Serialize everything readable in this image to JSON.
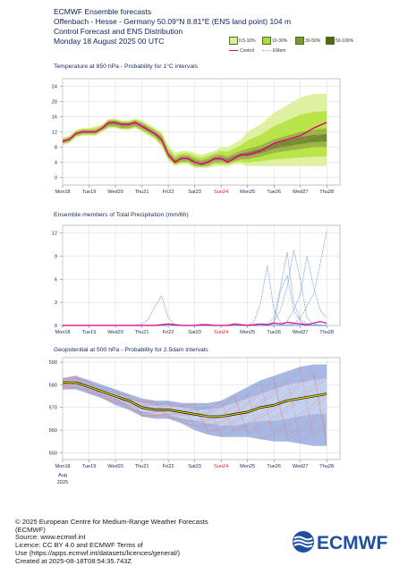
{
  "header": {
    "title": "ECMWF Ensemble forecasts",
    "location": "Offenbach - Hesse - Germany 50.09°N 8.81°E (ENS land point) 104 m",
    "subtitle": "Control Forecast and ENS Distribution",
    "date": "Monday 18 August 2025 00 UTC"
  },
  "legend": {
    "items": [
      {
        "label": "0.5-10%",
        "color": "#d9ef9a"
      },
      {
        "label": "10-30%",
        "color": "#a8e030"
      },
      {
        "label": "30-50%",
        "color": "#7a9a2a"
      },
      {
        "label": "50-100%",
        "color": "#4e6a10"
      }
    ],
    "control_label": "Control",
    "emem_label": "EMem"
  },
  "footer": {
    "line1": "© 2025 European Centre for Medium-Range Weather Forecasts",
    "line2": "(ECMWF)",
    "line3": "Source: www.ecmwf.int",
    "line4": "Licence: CC BY 4.0 and ECMWF Terms of",
    "line5": "Use (https://apps.ecmwf.int/datasets/licences/general/)",
    "line6": "Created at 2025-08-18T08:54:35.743Z",
    "logo_text": "ECMWF"
  },
  "colors": {
    "control": "#e0007a",
    "grid": "#d8d8d8",
    "sunday_label": "#e02020",
    "z500_fill": "#8aa0d8",
    "z500_mean": "#f4e600"
  },
  "chart_data": [
    {
      "type": "area",
      "title": "Temperature at 850 hPa - Probability for 1°C intervals",
      "ylim": [
        -2,
        26
      ],
      "yticks": [
        0,
        4,
        8,
        12,
        16,
        20,
        24
      ],
      "xlim": [
        0,
        10.5
      ],
      "xticks": [
        "Mon18",
        "Tue19",
        "Wed20",
        "Thu21",
        "Fri22",
        "Sat23",
        "Sun24",
        "Mon25",
        "Tue26",
        "Wed27",
        "Thu28"
      ],
      "x": [
        0,
        0.25,
        0.5,
        0.75,
        1,
        1.25,
        1.5,
        1.75,
        2,
        2.25,
        2.5,
        2.75,
        3,
        3.25,
        3.5,
        3.75,
        4,
        4.25,
        4.5,
        4.75,
        5,
        5.25,
        5.5,
        5.75,
        6,
        6.25,
        6.5,
        6.75,
        7,
        7.5,
        8,
        8.5,
        9,
        9.5,
        10
      ],
      "series": [
        {
          "name": "Control",
          "values": [
            9.5,
            10,
            11.5,
            12,
            12,
            12,
            13,
            14.5,
            14.5,
            14,
            14,
            14.5,
            13.5,
            12.5,
            11.5,
            10,
            6,
            4,
            5,
            5,
            4,
            3.5,
            4,
            5,
            5,
            4,
            5,
            6,
            6,
            7,
            9,
            10,
            11,
            13,
            14.5
          ]
        },
        {
          "name": "0.5-100% lower",
          "values": [
            8.5,
            9,
            10.5,
            11,
            11,
            11,
            12,
            13,
            13,
            12.5,
            12.5,
            13,
            12,
            11,
            10,
            8,
            4.5,
            3,
            3.5,
            3.5,
            2.5,
            2.5,
            2.5,
            3,
            3,
            3,
            3.5,
            3.5,
            3,
            3,
            3,
            3,
            3,
            3,
            3
          ]
        },
        {
          "name": "0.5-100% upper",
          "values": [
            10.5,
            11,
            12.5,
            13,
            13,
            13.5,
            14,
            15.5,
            15.5,
            15,
            15,
            15.5,
            15,
            14,
            13,
            12,
            8.5,
            6.5,
            7,
            7,
            6.5,
            6,
            6.5,
            7,
            8,
            8,
            9,
            10,
            12,
            14,
            17,
            19,
            21,
            22,
            22
          ]
        },
        {
          "name": "30-100% lower",
          "values": [
            9,
            9.5,
            11,
            11.5,
            11.5,
            11.5,
            12.5,
            13.5,
            13.5,
            13,
            13,
            13.5,
            12.7,
            11.7,
            10.7,
            9,
            5.2,
            3.6,
            4.2,
            4.2,
            3.2,
            3,
            3.2,
            4,
            4,
            3.8,
            4.3,
            4.8,
            4.8,
            5.5,
            6.5,
            7,
            7.5,
            8,
            8
          ]
        },
        {
          "name": "30-100% upper",
          "values": [
            10,
            10.5,
            12,
            12.5,
            12.5,
            12.5,
            13.5,
            15,
            15,
            14.5,
            14.5,
            15,
            14.3,
            13.3,
            12.3,
            11,
            7,
            5,
            5.8,
            5.8,
            5,
            4.5,
            5,
            5.8,
            6,
            5.5,
            6.3,
            7,
            7.5,
            8.5,
            10,
            11,
            12,
            12.5,
            13
          ]
        }
      ]
    },
    {
      "type": "line",
      "title": "Ensemble members of Total Precipitation (mm/6h)",
      "ylim": [
        0,
        13
      ],
      "yticks": [
        0,
        3,
        6,
        9,
        12
      ],
      "xlim": [
        0,
        10.5
      ],
      "xticks": [
        "Mon18",
        "Tue19",
        "Wed20",
        "Thu21",
        "Fri22",
        "Sat23",
        "Sun24",
        "Mon25",
        "Tue26",
        "Wed27",
        "Thu28"
      ],
      "series": [
        {
          "name": "Control",
          "values": [
            0,
            0,
            0,
            0,
            0,
            0,
            0,
            0,
            0,
            0,
            0,
            0,
            0,
            0,
            0,
            0.1,
            0.2,
            0.1,
            0,
            0,
            0,
            0.1,
            0.1,
            0,
            0,
            0,
            0.2,
            0.1,
            0,
            0.1,
            0.2,
            0.1,
            0.3,
            0.2,
            0.4,
            0.3,
            0.2,
            0.1,
            0.3,
            0.5,
            0.3
          ]
        },
        {
          "name": "",
          "values": [
            0,
            0,
            0,
            0,
            0,
            0,
            0,
            0,
            0,
            0,
            0,
            0,
            0.2,
            0.8,
            2.5,
            3.8,
            1,
            0.1,
            0,
            0,
            0,
            0,
            0,
            0,
            0,
            0,
            0,
            0,
            0,
            0,
            0,
            0,
            0,
            0,
            0,
            0,
            0,
            0,
            0,
            0,
            0
          ]
        },
        {
          "name": "",
          "values": [
            0,
            0,
            0,
            0,
            0,
            0,
            0,
            0,
            0,
            0,
            0,
            0,
            0,
            0,
            0,
            0,
            0,
            0,
            0,
            0,
            0,
            0,
            0,
            0,
            0,
            0,
            0,
            0,
            0,
            0.5,
            3,
            7.8,
            2,
            0.3,
            0,
            0,
            0,
            0,
            0,
            0,
            0
          ]
        },
        {
          "name": "",
          "values": [
            0,
            0,
            0,
            0,
            0,
            0,
            0,
            0,
            0,
            0,
            0,
            0,
            0,
            0,
            0,
            0,
            0,
            0,
            0,
            0,
            0,
            0,
            0,
            0,
            0,
            0,
            0,
            0,
            0,
            0,
            0,
            0.2,
            1,
            5,
            9.5,
            3,
            0.8,
            0.2,
            0,
            0,
            0
          ]
        },
        {
          "name": "",
          "values": [
            0,
            0,
            0,
            0,
            0,
            0,
            0,
            0,
            0,
            0,
            0,
            0,
            0,
            0,
            0,
            0,
            0,
            0,
            0,
            0,
            0,
            0,
            0,
            0,
            0,
            0,
            0,
            0,
            0,
            0,
            0,
            0,
            0.5,
            2,
            5,
            9.8,
            6,
            1,
            0.2,
            0,
            0
          ]
        },
        {
          "name": "",
          "values": [
            0,
            0,
            0,
            0,
            0,
            0,
            0,
            0,
            0,
            0,
            0,
            0,
            0,
            0,
            0,
            0,
            0,
            0,
            0,
            0,
            0,
            0,
            0,
            0,
            0,
            0,
            0,
            0,
            0,
            0,
            0,
            0,
            0,
            0,
            0.5,
            2,
            4,
            9,
            5,
            2,
            1
          ]
        },
        {
          "name": "",
          "values": [
            0,
            0,
            0,
            0,
            0,
            0,
            0,
            0,
            0,
            0,
            0,
            0,
            0,
            0,
            0,
            0,
            0,
            0,
            0,
            0,
            0,
            0,
            0,
            0,
            0,
            0,
            0,
            0,
            0,
            0,
            0,
            0,
            0,
            0,
            0,
            0.2,
            1,
            2.5,
            4,
            8,
            12.3
          ]
        },
        {
          "name": "",
          "values": [
            0,
            0,
            0,
            0,
            0,
            0,
            0,
            0,
            0,
            0,
            0,
            0,
            0,
            0,
            0,
            0,
            0,
            0,
            0,
            0,
            0,
            0,
            0,
            0,
            0,
            0,
            0,
            0,
            0,
            0,
            0,
            0,
            0.3,
            4.5,
            6.5,
            2,
            0.5,
            0,
            0,
            0,
            0
          ]
        }
      ]
    },
    {
      "type": "area",
      "title": "Geopotential at 500 hPa - Probability for 2.5dam intervals",
      "ylim": [
        547,
        592
      ],
      "yticks": [
        550,
        560,
        570,
        580,
        590
      ],
      "xlim": [
        0,
        10.5
      ],
      "xticks": [
        "Mon18",
        "Tue19",
        "Wed20",
        "Thu21",
        "Fri22",
        "Sat23",
        "Sun24",
        "Mon25",
        "Tue26",
        "Wed27",
        "Thu28"
      ],
      "xsublabels": [
        "Aug",
        "2025"
      ],
      "x": [
        0,
        0.5,
        1,
        1.5,
        2,
        2.5,
        3,
        3.5,
        4,
        4.5,
        5,
        5.5,
        6,
        6.5,
        7,
        7.5,
        8,
        8.5,
        9,
        9.5,
        10
      ],
      "series": [
        {
          "name": "Control",
          "values": [
            581,
            581,
            579,
            577,
            575,
            573,
            570,
            569,
            569,
            568,
            567,
            566,
            566,
            567,
            568,
            570,
            571,
            573,
            574,
            575,
            576
          ]
        },
        {
          "name": "Ensemble mean",
          "values": [
            581,
            581,
            579,
            577,
            575,
            573,
            570,
            569,
            569,
            568,
            567,
            566,
            566,
            567,
            568,
            570,
            571,
            573,
            574,
            575,
            576
          ]
        },
        {
          "name": "0.5-100% lower",
          "values": [
            578,
            578,
            576,
            574,
            571,
            569,
            566,
            565,
            565,
            563,
            560,
            558,
            557,
            557,
            557,
            556,
            555,
            555,
            554,
            553,
            553
          ]
        },
        {
          "name": "0.5-100% upper",
          "values": [
            583,
            584,
            582,
            580,
            578,
            576,
            574,
            573,
            573,
            572,
            572,
            572,
            573,
            576,
            579,
            582,
            584,
            586,
            588,
            589,
            589
          ]
        },
        {
          "name": "30-100% lower",
          "values": [
            580,
            580,
            578,
            576,
            574,
            571,
            568,
            567,
            567,
            565,
            564,
            563,
            562,
            562,
            563,
            564,
            564,
            565,
            566,
            567,
            567
          ]
        },
        {
          "name": "30-100% upper",
          "values": [
            582,
            582,
            580,
            578,
            576,
            574,
            572,
            571,
            571,
            570,
            569,
            569,
            570,
            572,
            574,
            576,
            578,
            580,
            581,
            582,
            583
          ]
        }
      ]
    }
  ]
}
